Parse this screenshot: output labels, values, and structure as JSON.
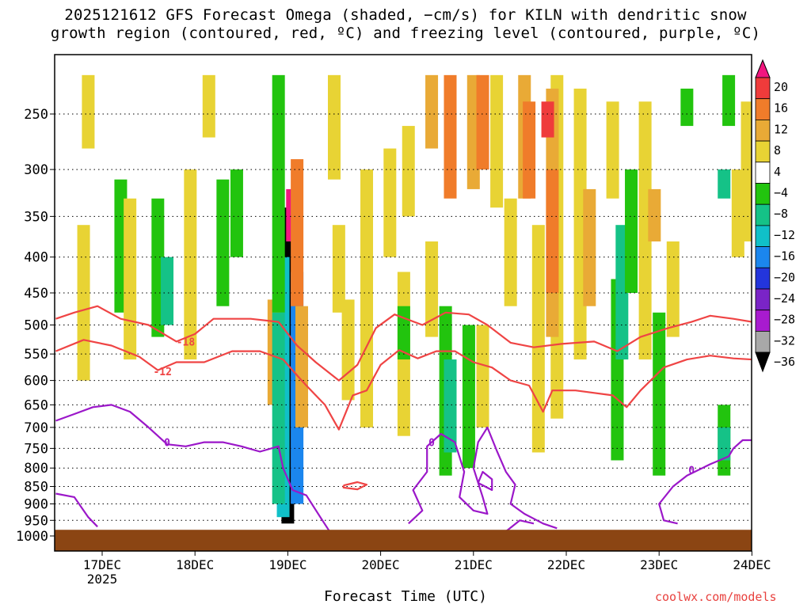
{
  "title_line1": "2025121612 GFS Forecast Omega (shaded, −cm/s) for KILN with dendritic snow",
  "title_line2": "growth region (contoured, red, ºC) and freezing level (contoured, purple, ºC)",
  "credit": "coolwx.com/models",
  "chart_data": {
    "type": "heatmap",
    "xlabel": "Forecast Time (UTC)",
    "ylabel": "",
    "x_ticks": [
      {
        "label": "17DEC",
        "sublabel": "2025",
        "day": 17
      },
      {
        "label": "18DEC",
        "day": 18
      },
      {
        "label": "19DEC",
        "day": 19
      },
      {
        "label": "20DEC",
        "day": 20
      },
      {
        "label": "21DEC",
        "day": 21
      },
      {
        "label": "22DEC",
        "day": 22
      },
      {
        "label": "23DEC",
        "day": 23
      },
      {
        "label": "24DEC",
        "day": 24
      }
    ],
    "xlim_days": [
      16.5,
      24.0
    ],
    "y_axis": "pressure (hPa), log scale, inverted",
    "ylim": [
      1050,
      200
    ],
    "y_ticks": [
      250,
      300,
      350,
      400,
      450,
      500,
      550,
      600,
      650,
      700,
      750,
      800,
      850,
      900,
      950,
      1000
    ],
    "colorbar": {
      "labels": [
        "20",
        "16",
        "12",
        "8",
        "4",
        "−4",
        "−8",
        "−12",
        "−16",
        "−20",
        "−24",
        "−28",
        "−32",
        "−36"
      ],
      "bins": [
        {
          "color": "#f2177f",
          "range": ">20"
        },
        {
          "color": "#ef3b3b",
          "range": "16 to 20"
        },
        {
          "color": "#f07c2a",
          "range": "12 to 16"
        },
        {
          "color": "#e9aa36",
          "range": "8 to 12"
        },
        {
          "color": "#e8d334",
          "range": "4 to 8"
        },
        {
          "color": "#ffffff",
          "range": "-4 to 4"
        },
        {
          "color": "#22c40e",
          "range": "-8 to -4"
        },
        {
          "color": "#15c287",
          "range": "-12 to -8"
        },
        {
          "color": "#10c0c8",
          "range": "-16 to -12"
        },
        {
          "color": "#1b86ee",
          "range": "-20 to -16"
        },
        {
          "color": "#2335dc",
          "range": "-24 to -20"
        },
        {
          "color": "#7a24c7",
          "range": "-28 to -24"
        },
        {
          "color": "#a81bcf",
          "range": "-32 to -28"
        },
        {
          "color": "#a8a8a8",
          "range": "-36 to -32"
        },
        {
          "color": "#000000",
          "range": "<-36"
        }
      ]
    },
    "omega_cells": [
      {
        "day": 19.0,
        "p_top": 340,
        "p_bot": 960,
        "value": -40
      },
      {
        "day": 18.95,
        "p_top": 400,
        "p_bot": 940,
        "value": -14
      },
      {
        "day": 19.1,
        "p_top": 420,
        "p_bot": 900,
        "value": -20
      },
      {
        "day": 19.05,
        "p_top": 320,
        "p_bot": 380,
        "value": 22
      },
      {
        "day": 19.1,
        "p_top": 290,
        "p_bot": 470,
        "value": 14
      },
      {
        "day": 19.15,
        "p_top": 470,
        "p_bot": 700,
        "value": 10
      },
      {
        "day": 18.85,
        "p_top": 460,
        "p_bot": 650,
        "value": 10
      },
      {
        "day": 18.9,
        "p_top": 220,
        "p_bot": 480,
        "value": -6
      },
      {
        "day": 18.9,
        "p_top": 480,
        "p_bot": 900,
        "value": -9
      },
      {
        "day": 17.2,
        "p_top": 310,
        "p_bot": 480,
        "value": -6
      },
      {
        "day": 17.6,
        "p_top": 330,
        "p_bot": 520,
        "value": -7
      },
      {
        "day": 17.7,
        "p_top": 400,
        "p_bot": 500,
        "value": -10
      },
      {
        "day": 18.3,
        "p_top": 310,
        "p_bot": 470,
        "value": -6
      },
      {
        "day": 18.45,
        "p_top": 300,
        "p_bot": 400,
        "value": -5
      },
      {
        "day": 16.85,
        "p_top": 220,
        "p_bot": 280,
        "value": 5
      },
      {
        "day": 16.8,
        "p_top": 360,
        "p_bot": 600,
        "value": 5
      },
      {
        "day": 17.3,
        "p_top": 330,
        "p_bot": 560,
        "value": 5
      },
      {
        "day": 17.95,
        "p_top": 300,
        "p_bot": 560,
        "value": 5
      },
      {
        "day": 18.15,
        "p_top": 220,
        "p_bot": 270,
        "value": 5
      },
      {
        "day": 19.5,
        "p_top": 220,
        "p_bot": 310,
        "value": 5
      },
      {
        "day": 19.55,
        "p_top": 360,
        "p_bot": 480,
        "value": 5
      },
      {
        "day": 19.65,
        "p_top": 460,
        "p_bot": 640,
        "value": 5
      },
      {
        "day": 19.85,
        "p_top": 300,
        "p_bot": 700,
        "value": 5
      },
      {
        "day": 20.1,
        "p_top": 280,
        "p_bot": 400,
        "value": 5
      },
      {
        "day": 20.3,
        "p_top": 260,
        "p_bot": 350,
        "value": 5
      },
      {
        "day": 20.25,
        "p_top": 420,
        "p_bot": 720,
        "value": 5
      },
      {
        "day": 20.55,
        "p_top": 380,
        "p_bot": 520,
        "value": 5
      },
      {
        "day": 20.55,
        "p_top": 220,
        "p_bot": 280,
        "value": 9
      },
      {
        "day": 20.75,
        "p_top": 220,
        "p_bot": 330,
        "value": 13
      },
      {
        "day": 20.7,
        "p_top": 470,
        "p_bot": 820,
        "value": -6
      },
      {
        "day": 20.75,
        "p_top": 560,
        "p_bot": 760,
        "value": -9
      },
      {
        "day": 20.95,
        "p_top": 500,
        "p_bot": 800,
        "value": -6
      },
      {
        "day": 20.25,
        "p_top": 470,
        "p_bot": 560,
        "value": -6
      },
      {
        "day": 21.0,
        "p_top": 220,
        "p_bot": 320,
        "value": 9
      },
      {
        "day": 21.1,
        "p_top": 220,
        "p_bot": 300,
        "value": 13
      },
      {
        "day": 21.1,
        "p_top": 500,
        "p_bot": 700,
        "value": 5
      },
      {
        "day": 21.25,
        "p_top": 220,
        "p_bot": 340,
        "value": 5
      },
      {
        "day": 21.4,
        "p_top": 330,
        "p_bot": 470,
        "value": 5
      },
      {
        "day": 21.55,
        "p_top": 220,
        "p_bot": 330,
        "value": 9
      },
      {
        "day": 21.6,
        "p_top": 240,
        "p_bot": 330,
        "value": 13
      },
      {
        "day": 21.7,
        "p_top": 360,
        "p_bot": 760,
        "value": 5
      },
      {
        "day": 21.9,
        "p_top": 220,
        "p_bot": 680,
        "value": 5
      },
      {
        "day": 21.85,
        "p_top": 230,
        "p_bot": 520,
        "value": 9
      },
      {
        "day": 21.85,
        "p_top": 300,
        "p_bot": 450,
        "value": 13
      },
      {
        "day": 21.8,
        "p_top": 240,
        "p_bot": 270,
        "value": 17
      },
      {
        "day": 22.15,
        "p_top": 230,
        "p_bot": 560,
        "value": 5
      },
      {
        "day": 22.25,
        "p_top": 320,
        "p_bot": 470,
        "value": 9
      },
      {
        "day": 22.55,
        "p_top": 430,
        "p_bot": 780,
        "value": -6
      },
      {
        "day": 22.6,
        "p_top": 360,
        "p_bot": 560,
        "value": -12
      },
      {
        "day": 22.7,
        "p_top": 300,
        "p_bot": 450,
        "value": -6
      },
      {
        "day": 22.5,
        "p_top": 240,
        "p_bot": 330,
        "value": 5
      },
      {
        "day": 22.85,
        "p_top": 240,
        "p_bot": 560,
        "value": 5
      },
      {
        "day": 22.95,
        "p_top": 320,
        "p_bot": 380,
        "value": 9
      },
      {
        "day": 23.0,
        "p_top": 480,
        "p_bot": 820,
        "value": -6
      },
      {
        "day": 23.15,
        "p_top": 380,
        "p_bot": 520,
        "value": 5
      },
      {
        "day": 23.3,
        "p_top": 230,
        "p_bot": 260,
        "value": -6
      },
      {
        "day": 23.75,
        "p_top": 220,
        "p_bot": 260,
        "value": -6
      },
      {
        "day": 23.7,
        "p_top": 300,
        "p_bot": 330,
        "value": -10
      },
      {
        "day": 23.7,
        "p_top": 650,
        "p_bot": 820,
        "value": -7
      },
      {
        "day": 23.7,
        "p_top": 700,
        "p_bot": 780,
        "value": -10
      },
      {
        "day": 23.85,
        "p_top": 300,
        "p_bot": 400,
        "value": 5
      },
      {
        "day": 23.95,
        "p_top": 240,
        "p_bot": 380,
        "value": 5
      }
    ],
    "contours": [
      {
        "name": "-18",
        "color": "#ef4444",
        "label_day": 17.9,
        "label_p": 528,
        "points": [
          [
            16.5,
            490
          ],
          [
            16.7,
            480
          ],
          [
            16.95,
            470
          ],
          [
            17.2,
            490
          ],
          [
            17.5,
            500
          ],
          [
            17.8,
            528
          ],
          [
            18.0,
            515
          ],
          [
            18.2,
            490
          ],
          [
            18.6,
            490
          ],
          [
            18.9,
            495
          ],
          [
            19.1,
            535
          ],
          [
            19.3,
            565
          ],
          [
            19.55,
            600
          ],
          [
            19.75,
            570
          ],
          [
            19.95,
            505
          ],
          [
            20.15,
            483
          ],
          [
            20.45,
            500
          ],
          [
            20.7,
            480
          ],
          [
            20.95,
            483
          ],
          [
            21.15,
            500
          ],
          [
            21.4,
            530
          ],
          [
            21.65,
            538
          ],
          [
            21.95,
            532
          ],
          [
            22.3,
            528
          ],
          [
            22.55,
            545
          ],
          [
            22.8,
            520
          ],
          [
            23.1,
            505
          ],
          [
            23.35,
            495
          ],
          [
            23.55,
            485
          ],
          [
            23.8,
            490
          ],
          [
            24.0,
            495
          ]
        ]
      },
      {
        "name": "-12",
        "color": "#ef4444",
        "label_day": 17.65,
        "label_p": 582,
        "points": [
          [
            16.5,
            545
          ],
          [
            16.8,
            525
          ],
          [
            17.1,
            535
          ],
          [
            17.4,
            555
          ],
          [
            17.6,
            580
          ],
          [
            17.8,
            565
          ],
          [
            18.1,
            565
          ],
          [
            18.4,
            545
          ],
          [
            18.7,
            545
          ],
          [
            18.95,
            560
          ],
          [
            19.1,
            590
          ],
          [
            19.2,
            610
          ],
          [
            19.4,
            650
          ],
          [
            19.55,
            705
          ],
          [
            19.7,
            630
          ],
          [
            19.85,
            620
          ],
          [
            20.0,
            570
          ],
          [
            20.2,
            543
          ],
          [
            20.4,
            558
          ],
          [
            20.6,
            545
          ],
          [
            20.8,
            545
          ],
          [
            21.0,
            565
          ],
          [
            21.2,
            575
          ],
          [
            21.4,
            600
          ],
          [
            21.6,
            610
          ],
          [
            21.75,
            665
          ],
          [
            21.85,
            620
          ],
          [
            22.1,
            620
          ],
          [
            22.5,
            630
          ],
          [
            22.65,
            655
          ],
          [
            22.8,
            620
          ],
          [
            23.05,
            575
          ],
          [
            23.3,
            560
          ],
          [
            23.55,
            553
          ],
          [
            23.8,
            558
          ],
          [
            24.0,
            560
          ]
        ]
      },
      {
        "name": "-12b",
        "color": "#ef4444",
        "label_day": null,
        "label_p": null,
        "points": [
          [
            19.6,
            847
          ],
          [
            19.75,
            838
          ],
          [
            19.85,
            845
          ],
          [
            19.75,
            858
          ],
          [
            19.6,
            853
          ],
          [
            19.6,
            847
          ]
        ]
      },
      {
        "name": "0",
        "color": "#9b17c9",
        "label_day": 17.7,
        "label_p": 735,
        "points": [
          [
            16.5,
            685
          ],
          [
            16.7,
            670
          ],
          [
            16.9,
            655
          ],
          [
            17.1,
            650
          ],
          [
            17.3,
            665
          ],
          [
            17.5,
            700
          ],
          [
            17.7,
            740
          ],
          [
            17.9,
            745
          ],
          [
            18.1,
            735
          ],
          [
            18.3,
            735
          ],
          [
            18.5,
            745
          ],
          [
            18.7,
            758
          ],
          [
            18.9,
            745
          ],
          [
            18.95,
            800
          ],
          [
            19.05,
            860
          ],
          [
            19.2,
            875
          ],
          [
            19.35,
            940
          ],
          [
            19.45,
            985
          ]
        ]
      },
      {
        "name": "0b",
        "color": "#9b17c9",
        "label_day": 20.55,
        "label_p": 735,
        "points": [
          [
            20.3,
            960
          ],
          [
            20.45,
            920
          ],
          [
            20.35,
            860
          ],
          [
            20.5,
            810
          ],
          [
            20.5,
            745
          ],
          [
            20.65,
            715
          ],
          [
            20.8,
            735
          ],
          [
            20.9,
            810
          ],
          [
            20.85,
            880
          ],
          [
            21.0,
            920
          ],
          [
            21.15,
            930
          ],
          [
            21.1,
            880
          ],
          [
            21.0,
            800
          ],
          [
            21.05,
            735
          ],
          [
            21.15,
            700
          ],
          [
            21.25,
            755
          ],
          [
            21.35,
            810
          ],
          [
            21.45,
            845
          ],
          [
            21.4,
            900
          ],
          [
            21.55,
            930
          ],
          [
            21.65,
            945
          ],
          [
            21.75,
            960
          ],
          [
            21.9,
            975
          ]
        ]
      },
      {
        "name": "0c",
        "color": "#9b17c9",
        "label_day": null,
        "label_p": null,
        "points": [
          [
            21.05,
            840
          ],
          [
            21.1,
            810
          ],
          [
            21.2,
            830
          ],
          [
            21.2,
            860
          ],
          [
            21.05,
            840
          ]
        ]
      },
      {
        "name": "0d",
        "color": "#9b17c9",
        "label_day": 23.35,
        "label_p": 805,
        "points": [
          [
            23.2,
            960
          ],
          [
            23.05,
            950
          ],
          [
            23.0,
            900
          ],
          [
            23.15,
            850
          ],
          [
            23.3,
            820
          ],
          [
            23.55,
            790
          ],
          [
            23.75,
            770
          ],
          [
            23.8,
            750
          ],
          [
            23.9,
            730
          ],
          [
            24.0,
            730
          ]
        ]
      },
      {
        "name": "0e",
        "color": "#9b17c9",
        "label_day": null,
        "label_p": null,
        "points": [
          [
            16.5,
            870
          ],
          [
            16.7,
            880
          ],
          [
            16.85,
            940
          ],
          [
            16.95,
            970
          ]
        ]
      },
      {
        "name": "0f",
        "color": "#9b17c9",
        "label_day": null,
        "label_p": null,
        "points": [
          [
            21.35,
            985
          ],
          [
            21.5,
            950
          ],
          [
            21.65,
            960
          ]
        ]
      }
    ],
    "ground": {
      "color": "#8b4513",
      "p_surface": 980
    }
  }
}
